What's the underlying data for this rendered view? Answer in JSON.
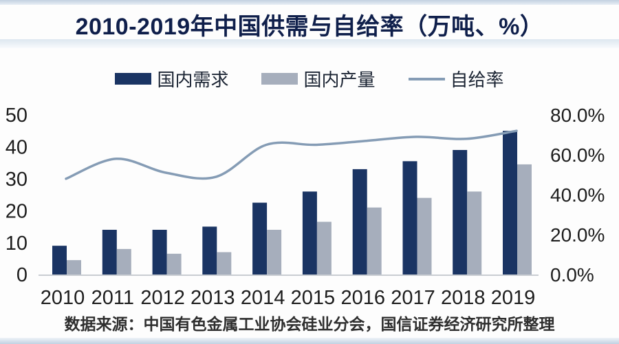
{
  "title": "2010-2019年中国供需与自给率（万吨、%）",
  "source": "数据来源：中国有色金属工业协会硅业分会，国信证券经济研究所整理",
  "colors": {
    "demand_bar": "#1a3463",
    "production_bar": "#a6aebc",
    "line": "#859cb5",
    "title_text": "#0f1f4b",
    "axis_text": "#1d1d1d",
    "baseline": "#c9cdd2"
  },
  "chart_data": {
    "type": "combo (bar + line)",
    "title": "2010-2019年中国供需与自给率（万吨、%）",
    "categories": [
      2010,
      2011,
      2012,
      2013,
      2014,
      2015,
      2016,
      2017,
      2018,
      2019
    ],
    "series": [
      {
        "name": "国内需求",
        "type": "bar",
        "axis": "left",
        "unit": "万吨",
        "values": [
          9,
          14,
          14,
          15,
          22.5,
          26,
          33,
          35.5,
          39,
          45
        ]
      },
      {
        "name": "国内产量",
        "type": "bar",
        "axis": "left",
        "unit": "万吨",
        "values": [
          4.5,
          8,
          6.5,
          7,
          14,
          16.5,
          21,
          24,
          26,
          34.5
        ]
      },
      {
        "name": "自给率",
        "type": "line",
        "axis": "right",
        "unit": "%",
        "values": [
          48,
          58,
          51,
          49,
          65,
          65,
          67,
          69,
          68,
          72
        ]
      }
    ],
    "left_axis": {
      "range": [
        0,
        50
      ],
      "ticks": [
        0,
        10,
        20,
        30,
        40,
        50
      ]
    },
    "right_axis": {
      "range": [
        0,
        80
      ],
      "ticks": [
        "0.0%",
        "20.0%",
        "40.0%",
        "60.0%",
        "80.0%"
      ]
    },
    "grid": false,
    "legend_position": "top"
  }
}
